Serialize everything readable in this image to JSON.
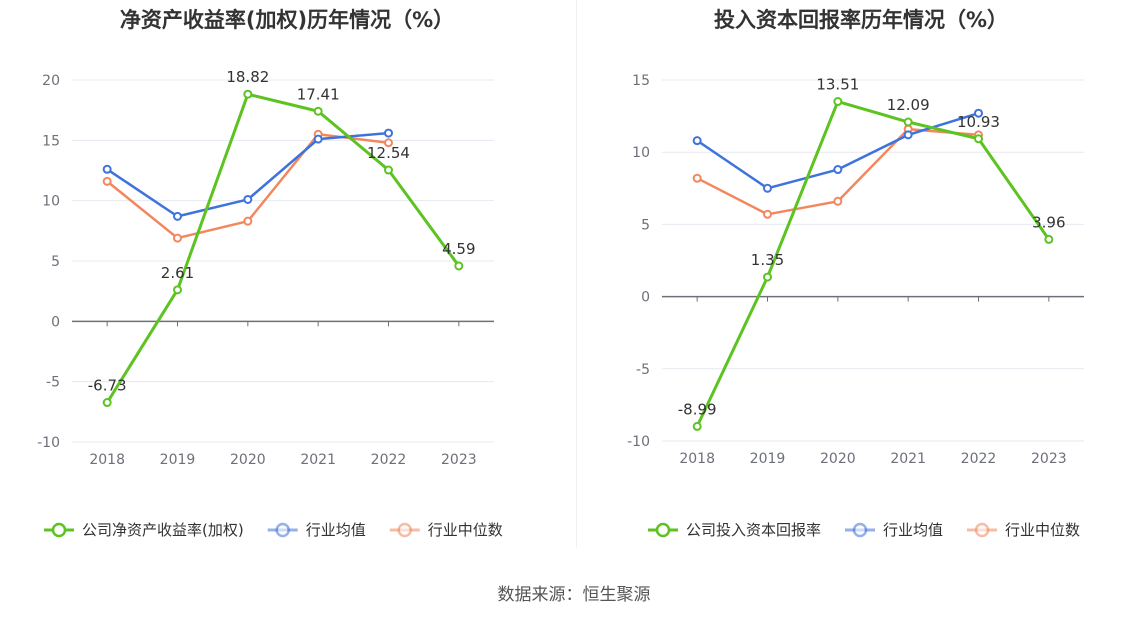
{
  "source_label": "数据来源：恒生聚源",
  "colors": {
    "company": "#5cc321",
    "avg": "#3e73dd",
    "median": "#f2875e",
    "grid": "#e6e9f0",
    "axis": "#6e7079"
  },
  "chart_data": [
    {
      "type": "line",
      "title": "净资产收益率(加权)历年情况（%）",
      "categories": [
        "2018",
        "2019",
        "2020",
        "2021",
        "2022",
        "2023"
      ],
      "ylim": [
        -10,
        20
      ],
      "yticks": [
        -10,
        -5,
        0,
        5,
        10,
        15,
        20
      ],
      "grid": true,
      "legend_position": "bottom",
      "series": [
        {
          "name": "公司净资产收益率(加权)",
          "key": "company",
          "values": [
            -6.73,
            2.61,
            18.82,
            17.41,
            12.54,
            4.59
          ],
          "labels": [
            "-6.73",
            "2.61",
            "18.82",
            "17.41",
            "12.54",
            "4.59"
          ]
        },
        {
          "name": "行业均值",
          "key": "avg",
          "values": [
            12.6,
            8.7,
            10.1,
            15.1,
            15.6,
            null
          ]
        },
        {
          "name": "行业中位数",
          "key": "median",
          "values": [
            11.6,
            6.9,
            8.3,
            15.5,
            14.8,
            null
          ]
        }
      ]
    },
    {
      "type": "line",
      "title": "投入资本回报率历年情况（%）",
      "categories": [
        "2018",
        "2019",
        "2020",
        "2021",
        "2022",
        "2023"
      ],
      "ylim": [
        -10,
        15
      ],
      "yticks": [
        -10,
        -5,
        0,
        5,
        10,
        15
      ],
      "grid": true,
      "legend_position": "bottom",
      "series": [
        {
          "name": "公司投入资本回报率",
          "key": "company",
          "values": [
            -8.99,
            1.35,
            13.51,
            12.09,
            10.93,
            3.96
          ],
          "labels": [
            "-8.99",
            "1.35",
            "13.51",
            "12.09",
            "10.93",
            "3.96"
          ]
        },
        {
          "name": "行业均值",
          "key": "avg",
          "values": [
            10.8,
            7.5,
            8.8,
            11.2,
            12.7,
            null
          ]
        },
        {
          "name": "行业中位数",
          "key": "median",
          "values": [
            8.2,
            5.7,
            6.6,
            11.6,
            11.2,
            null
          ]
        }
      ]
    }
  ]
}
